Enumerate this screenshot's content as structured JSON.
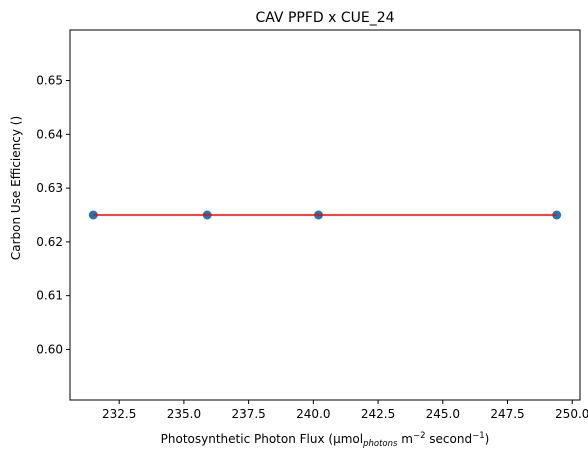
{
  "chart_data": {
    "type": "scatter",
    "title": "CAV PPFD x CUE_24",
    "xlabel": {
      "prefix": "Photosynthetic Photon Flux (µmol",
      "sub": "photons",
      "mid1": " m",
      "sup1": "−2",
      "mid2": " second",
      "sup2": "−1",
      "suffix": ")"
    },
    "ylabel": "Carbon Use Efficiency ()",
    "xlim": [
      230.6,
      250.3
    ],
    "ylim": [
      0.5906,
      0.6594
    ],
    "xticks": [
      232.5,
      235.0,
      237.5,
      240.0,
      242.5,
      245.0,
      247.5,
      250.0
    ],
    "xtick_labels": [
      "232.5",
      "235.0",
      "237.5",
      "240.0",
      "242.5",
      "245.0",
      "247.5",
      "250.0"
    ],
    "yticks": [
      0.6,
      0.61,
      0.62,
      0.63,
      0.64,
      0.65
    ],
    "ytick_labels": [
      "0.60",
      "0.61",
      "0.62",
      "0.63",
      "0.64",
      "0.65"
    ],
    "series": [
      {
        "kind": "scatter",
        "color": "#1f77b4",
        "points": [
          {
            "x": 231.5,
            "y": 0.625
          },
          {
            "x": 235.9,
            "y": 0.625
          },
          {
            "x": 240.2,
            "y": 0.625
          },
          {
            "x": 249.4,
            "y": 0.625
          }
        ]
      },
      {
        "kind": "line",
        "color": "#ff0000",
        "points": [
          {
            "x": 231.5,
            "y": 0.625
          },
          {
            "x": 249.4,
            "y": 0.625
          }
        ]
      }
    ],
    "grid": false,
    "legend": "none"
  }
}
